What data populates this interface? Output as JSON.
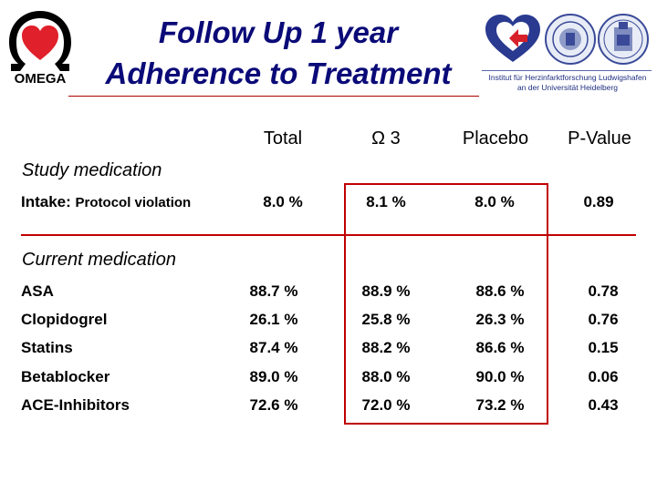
{
  "slide": {
    "title_line1": "Follow Up 1 year",
    "title_line2": "Adherence to Treatment"
  },
  "logos": {
    "left_logo_text": "OMEGA",
    "institute_line1": "Institut für Herzinfarktforschung Ludwigshafen",
    "institute_line2": "an der Universität Heidelberg",
    "accent_red": "#c00000",
    "title_blue": "#0a0a78"
  },
  "table": {
    "columns": [
      "Total",
      "Ω 3",
      "Placebo",
      "P-Value"
    ],
    "section_study": "Study medication",
    "intake": {
      "label": "Intake:",
      "sublabel": "Protocol violation",
      "values": [
        "8.0 %",
        "8.1 %",
        "8.0 %",
        "0.89"
      ]
    },
    "section_current": "Current medication",
    "rows": [
      {
        "label": "ASA",
        "values": [
          "88.7 %",
          "88.9 %",
          "88.6 %",
          "0.78"
        ]
      },
      {
        "label": "Clopidogrel",
        "values": [
          "26.1 %",
          "25.8 %",
          "26.3 %",
          "0.76"
        ]
      },
      {
        "label": "Statins",
        "values": [
          "87.4 %",
          "88.2 %",
          "86.6 %",
          "0.15"
        ]
      },
      {
        "label": "Betablocker",
        "values": [
          "89.0 %",
          "88.0 %",
          "90.0 %",
          "0.06"
        ]
      },
      {
        "label": "ACE-Inhibitors",
        "values": [
          "72.6 %",
          "72.0 %",
          "73.2 %",
          "0.43"
        ]
      }
    ]
  }
}
